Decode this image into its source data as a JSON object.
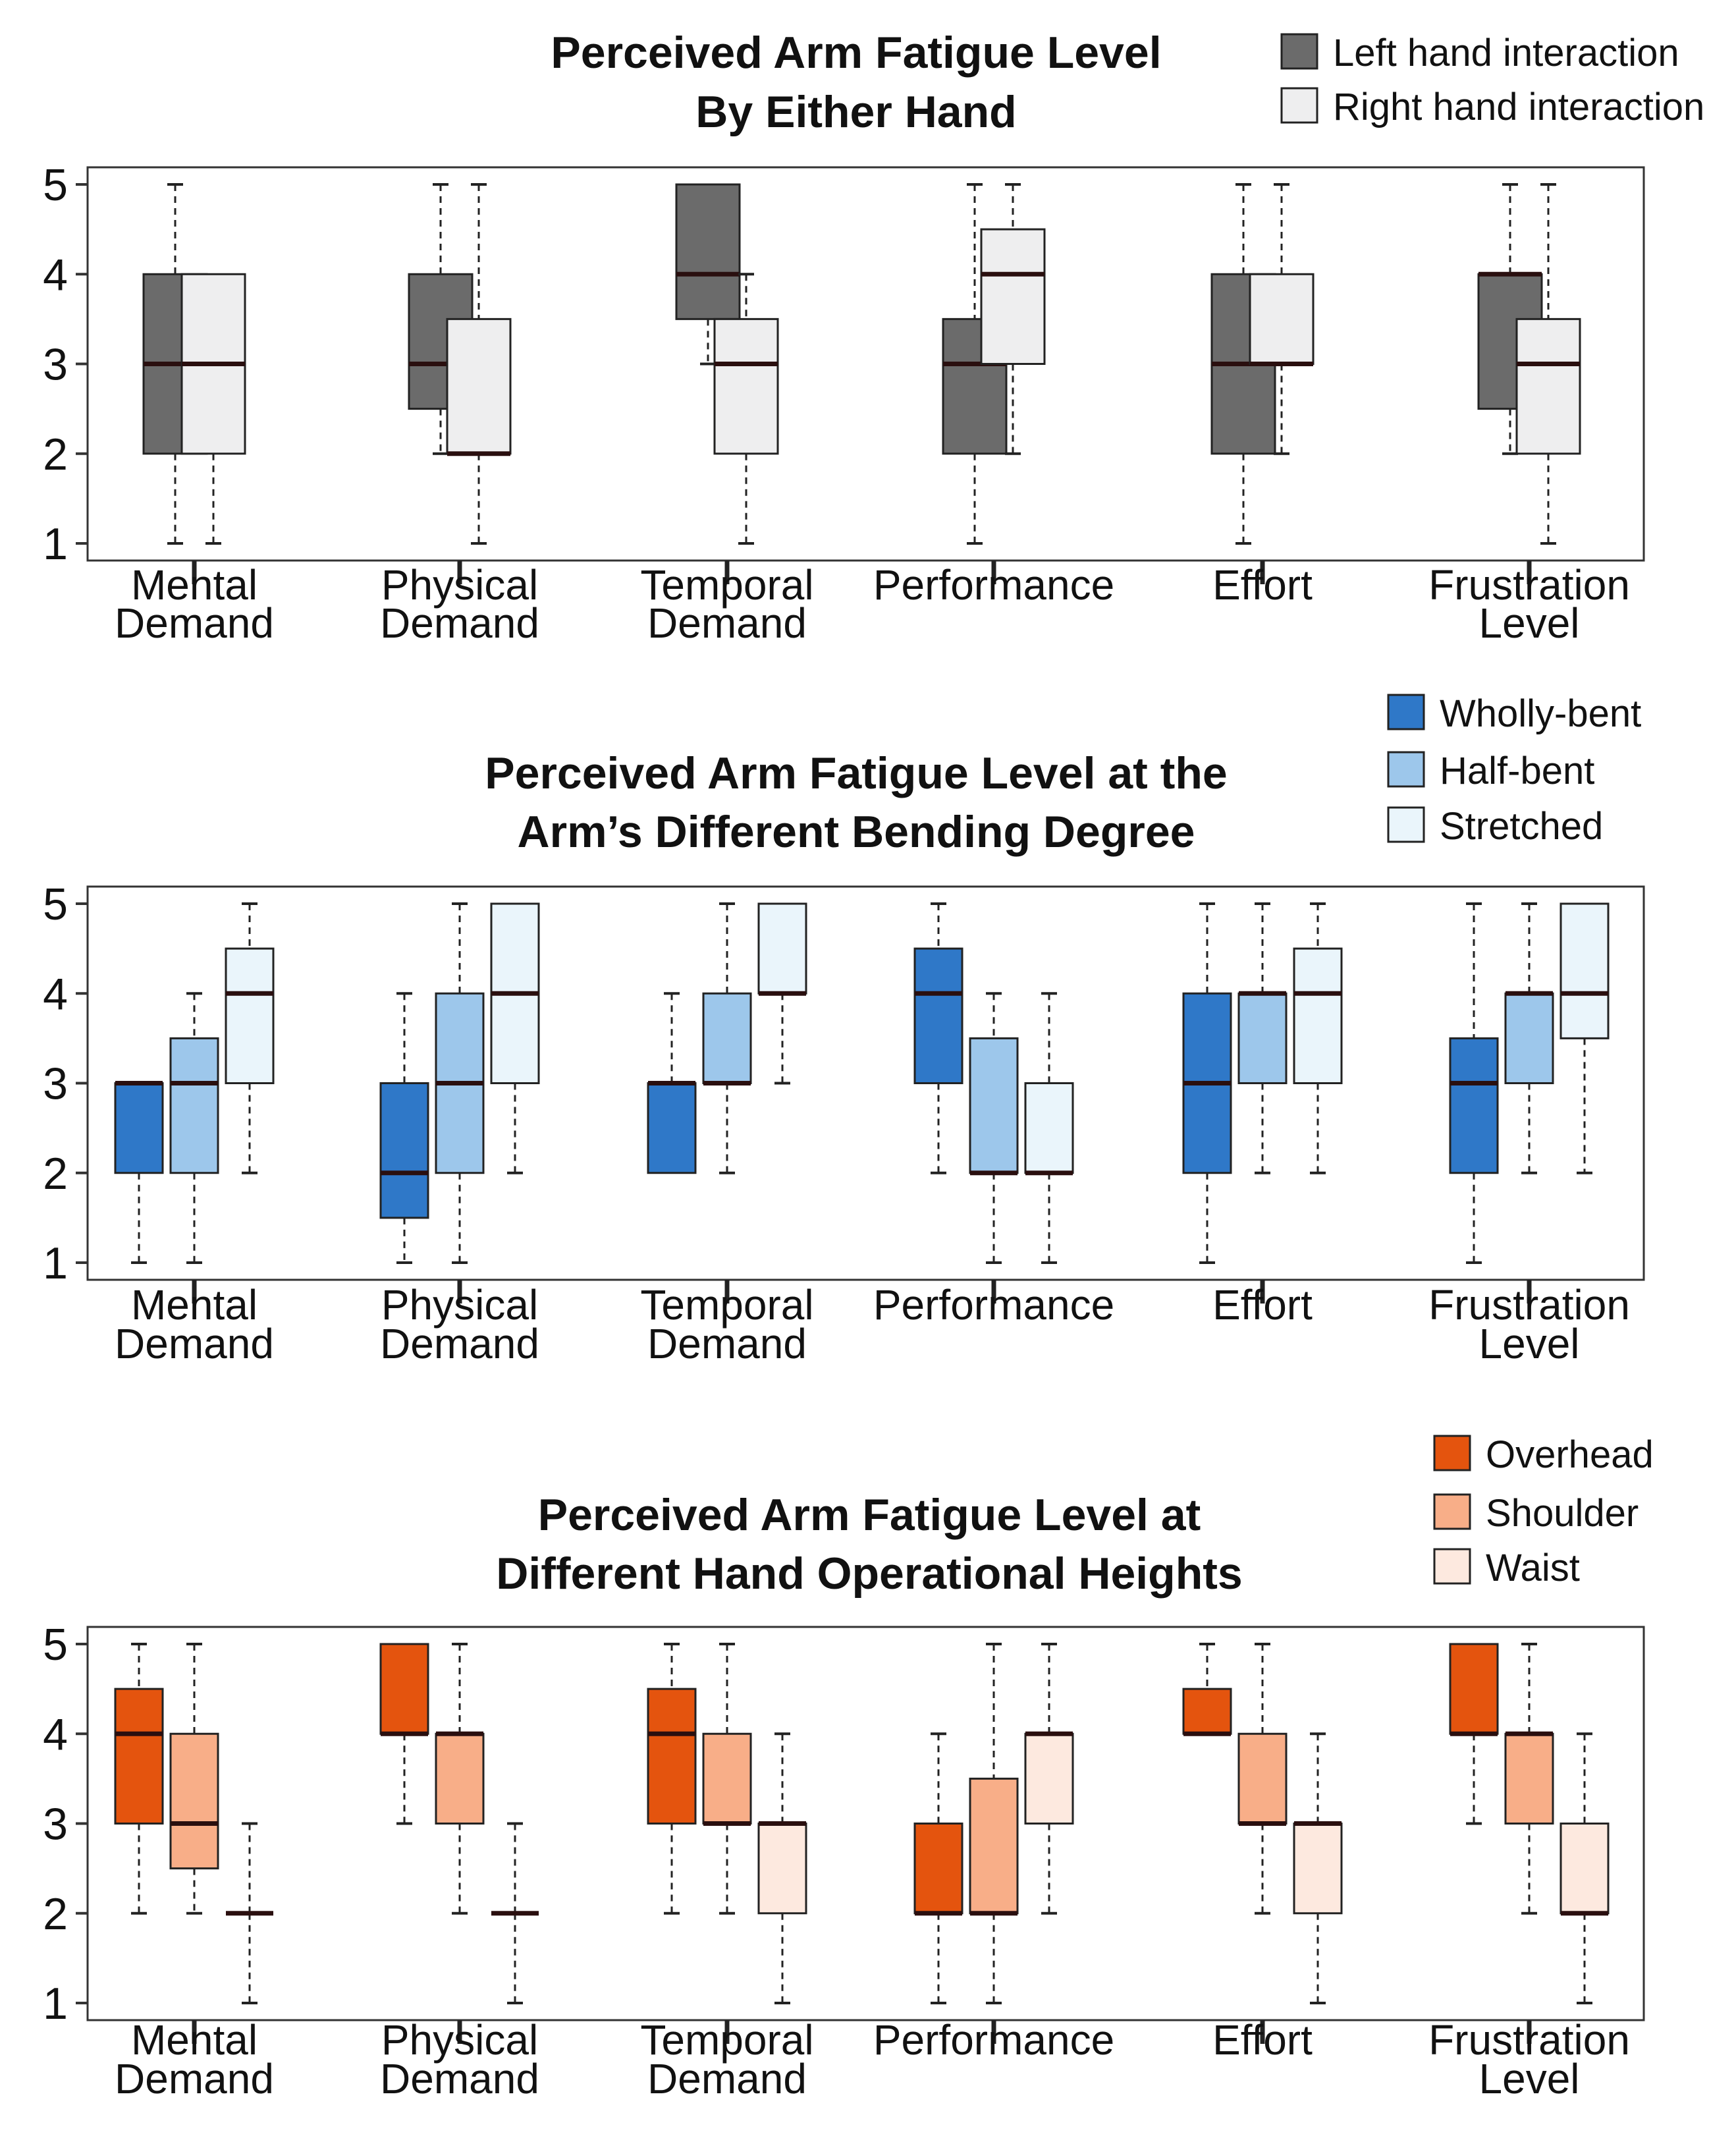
{
  "chart_data": [
    {
      "type": "boxplot",
      "title": [
        "Perceived Arm Fatigue Level",
        "By Either Hand"
      ],
      "categories": [
        [
          "Mental",
          "Demand"
        ],
        [
          "Physical",
          "Demand"
        ],
        [
          "Temporal",
          "Demand"
        ],
        [
          "Performance"
        ],
        [
          "Effort"
        ],
        [
          "Frustration",
          "Level"
        ]
      ],
      "ylim": [
        1,
        5
      ],
      "yticks": [
        "1",
        "2",
        "3",
        "4",
        "5"
      ],
      "series": [
        {
          "name": "Left hand interaction",
          "color": "#6b6b6b",
          "boxes": [
            {
              "min": 1,
              "q1": 2,
              "median": 3,
              "q3": 4,
              "max": 5
            },
            {
              "min": 2,
              "q1": 2.5,
              "median": 3,
              "q3": 4,
              "max": 5
            },
            {
              "min": 3,
              "q1": 3.5,
              "median": 4,
              "q3": 5,
              "max": 5
            },
            {
              "min": 1,
              "q1": 2,
              "median": 3,
              "q3": 3.5,
              "max": 5
            },
            {
              "min": 1,
              "q1": 2,
              "median": 3,
              "q3": 4,
              "max": 5
            },
            {
              "min": 2,
              "q1": 2.5,
              "median": 4,
              "q3": 4,
              "max": 5
            }
          ]
        },
        {
          "name": "Right hand interaction",
          "color": "#eeeeef",
          "boxes": [
            {
              "min": 1,
              "q1": 2,
              "median": 3,
              "q3": 4,
              "max": 4
            },
            {
              "min": 1,
              "q1": 2,
              "median": 2,
              "q3": 3.5,
              "max": 5
            },
            {
              "min": 1,
              "q1": 2,
              "median": 3,
              "q3": 3.5,
              "max": 4
            },
            {
              "min": 2,
              "q1": 3,
              "median": 4,
              "q3": 4.5,
              "max": 5
            },
            {
              "min": 2,
              "q1": 3,
              "median": 3,
              "q3": 4,
              "max": 5
            },
            {
              "min": 1,
              "q1": 2,
              "median": 3,
              "q3": 3.5,
              "max": 5
            }
          ]
        }
      ]
    },
    {
      "type": "boxplot",
      "title": [
        "Perceived Arm Fatigue Level at the",
        "Arm’s Different Bending Degree"
      ],
      "categories": [
        [
          "Mental",
          "Demand"
        ],
        [
          "Physical",
          "Demand"
        ],
        [
          "Temporal",
          "Demand"
        ],
        [
          "Performance"
        ],
        [
          "Effort"
        ],
        [
          "Frustration",
          "Level"
        ]
      ],
      "ylim": [
        1,
        5
      ],
      "yticks": [
        "1",
        "2",
        "3",
        "4",
        "5"
      ],
      "series": [
        {
          "name": "Wholly-bent",
          "color": "#2f78c8",
          "boxes": [
            {
              "min": 1,
              "q1": 2,
              "median": 3,
              "q3": 3,
              "max": 3
            },
            {
              "min": 1,
              "q1": 1.5,
              "median": 2,
              "q3": 3,
              "max": 4
            },
            {
              "min": 2,
              "q1": 2,
              "median": 3,
              "q3": 3,
              "max": 4
            },
            {
              "min": 2,
              "q1": 3,
              "median": 4,
              "q3": 4.5,
              "max": 5
            },
            {
              "min": 1,
              "q1": 2,
              "median": 3,
              "q3": 4,
              "max": 5
            },
            {
              "min": 1,
              "q1": 2,
              "median": 3,
              "q3": 3.5,
              "max": 5
            }
          ]
        },
        {
          "name": "Half-bent",
          "color": "#9dc7eb",
          "boxes": [
            {
              "min": 1,
              "q1": 2,
              "median": 3,
              "q3": 3.5,
              "max": 4
            },
            {
              "min": 1,
              "q1": 2,
              "median": 3,
              "q3": 4,
              "max": 5
            },
            {
              "min": 2,
              "q1": 3,
              "median": 3,
              "q3": 4,
              "max": 5
            },
            {
              "min": 1,
              "q1": 2,
              "median": 2,
              "q3": 3.5,
              "max": 4
            },
            {
              "min": 2,
              "q1": 3,
              "median": 4,
              "q3": 4,
              "max": 5
            },
            {
              "min": 2,
              "q1": 3,
              "median": 4,
              "q3": 4,
              "max": 5
            }
          ]
        },
        {
          "name": "Stretched",
          "color": "#eaf5fb",
          "boxes": [
            {
              "min": 2,
              "q1": 3,
              "median": 4,
              "q3": 4.5,
              "max": 5
            },
            {
              "min": 2,
              "q1": 3,
              "median": 4,
              "q3": 5,
              "max": 5
            },
            {
              "min": 3,
              "q1": 4,
              "median": 4,
              "q3": 5,
              "max": 5
            },
            {
              "min": 1,
              "q1": 2,
              "median": 2,
              "q3": 3,
              "max": 4
            },
            {
              "min": 2,
              "q1": 3,
              "median": 4,
              "q3": 4.5,
              "max": 5
            },
            {
              "min": 2,
              "q1": 3.5,
              "median": 4,
              "q3": 5,
              "max": 5
            }
          ]
        }
      ]
    },
    {
      "type": "boxplot",
      "title": [
        "Perceived Arm Fatigue Level at",
        "Different Hand Operational Heights"
      ],
      "categories": [
        [
          "Mental",
          "Demand"
        ],
        [
          "Physical",
          "Demand"
        ],
        [
          "Temporal",
          "Demand"
        ],
        [
          "Performance"
        ],
        [
          "Effort"
        ],
        [
          "Frustration",
          "Level"
        ]
      ],
      "ylim": [
        1,
        5
      ],
      "yticks": [
        "1",
        "2",
        "3",
        "4",
        "5"
      ],
      "series": [
        {
          "name": "Overhead",
          "color": "#e4540e",
          "boxes": [
            {
              "min": 2,
              "q1": 3,
              "median": 4,
              "q3": 4.5,
              "max": 5
            },
            {
              "min": 3,
              "q1": 4,
              "median": 4,
              "q3": 5,
              "max": 5
            },
            {
              "min": 2,
              "q1": 3,
              "median": 4,
              "q3": 4.5,
              "max": 5
            },
            {
              "min": 1,
              "q1": 2,
              "median": 2,
              "q3": 3,
              "max": 4
            },
            {
              "min": 4,
              "q1": 4,
              "median": 4,
              "q3": 4.5,
              "max": 5
            },
            {
              "min": 3,
              "q1": 4,
              "median": 4,
              "q3": 5,
              "max": 5
            }
          ]
        },
        {
          "name": "Shoulder",
          "color": "#f8ae88",
          "boxes": [
            {
              "min": 2,
              "q1": 2.5,
              "median": 3,
              "q3": 4,
              "max": 5
            },
            {
              "min": 2,
              "q1": 3,
              "median": 4,
              "q3": 4,
              "max": 5
            },
            {
              "min": 2,
              "q1": 3,
              "median": 3,
              "q3": 4,
              "max": 5
            },
            {
              "min": 1,
              "q1": 2,
              "median": 2,
              "q3": 3.5,
              "max": 5
            },
            {
              "min": 2,
              "q1": 3,
              "median": 3,
              "q3": 4,
              "max": 5
            },
            {
              "min": 2,
              "q1": 3,
              "median": 4,
              "q3": 4,
              "max": 5
            }
          ]
        },
        {
          "name": "Waist",
          "color": "#fde9df",
          "boxes": [
            {
              "min": 1,
              "q1": 2,
              "median": 2,
              "q3": 2,
              "max": 3
            },
            {
              "min": 1,
              "q1": 2,
              "median": 2,
              "q3": 2,
              "max": 3
            },
            {
              "min": 1,
              "q1": 2,
              "median": 3,
              "q3": 3,
              "max": 4
            },
            {
              "min": 2,
              "q1": 3,
              "median": 4,
              "q3": 4,
              "max": 5
            },
            {
              "min": 1,
              "q1": 2,
              "median": 3,
              "q3": 3,
              "max": 4
            },
            {
              "min": 1,
              "q1": 2,
              "median": 2,
              "q3": 3,
              "max": 4
            }
          ]
        }
      ]
    }
  ]
}
